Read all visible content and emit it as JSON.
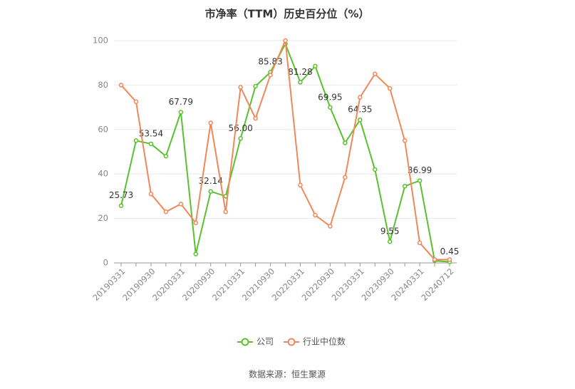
{
  "chart_data": {
    "type": "line",
    "title": "市净率（TTM）历史百分位（%）",
    "categories": [
      "20190331",
      null,
      "20190930",
      null,
      "20200331",
      null,
      "20200930",
      null,
      "20210331",
      null,
      "20210930",
      null,
      "20220331",
      null,
      "20220930",
      null,
      "20230331",
      null,
      "20230930",
      null,
      "20240331",
      null,
      "20240712"
    ],
    "series": [
      {
        "name": "公司",
        "color": "#5ac12e",
        "values": [
          25.73,
          55,
          53.54,
          48,
          67.79,
          4,
          32.14,
          30,
          56.0,
          79.5,
          85.83,
          98.5,
          81.28,
          88.5,
          69.95,
          54,
          64.35,
          42,
          9.55,
          34.5,
          36.99,
          1,
          0.45
        ],
        "value_labels": [
          "25.73",
          null,
          "53.54",
          null,
          "67.79",
          null,
          "32.14",
          null,
          "56.00",
          null,
          "85.83",
          null,
          "81.28",
          null,
          "69.95",
          null,
          "64.35",
          null,
          "9.55",
          null,
          "36.99",
          null,
          "0.45"
        ]
      },
      {
        "name": "行业中位数",
        "color": "#f0885a",
        "values": [
          80,
          72.5,
          31,
          23,
          26.5,
          18,
          63,
          23,
          79,
          65,
          84.5,
          100,
          35,
          21.5,
          16.5,
          38.5,
          74.5,
          85,
          78.5,
          55,
          9,
          1.5,
          1.5
        ]
      }
    ],
    "ylim": [
      0,
      100
    ],
    "yticks": [
      0,
      20,
      40,
      60,
      80,
      100
    ],
    "grid": true,
    "legend": "bottom",
    "source": "数据来源：恒生聚源"
  }
}
